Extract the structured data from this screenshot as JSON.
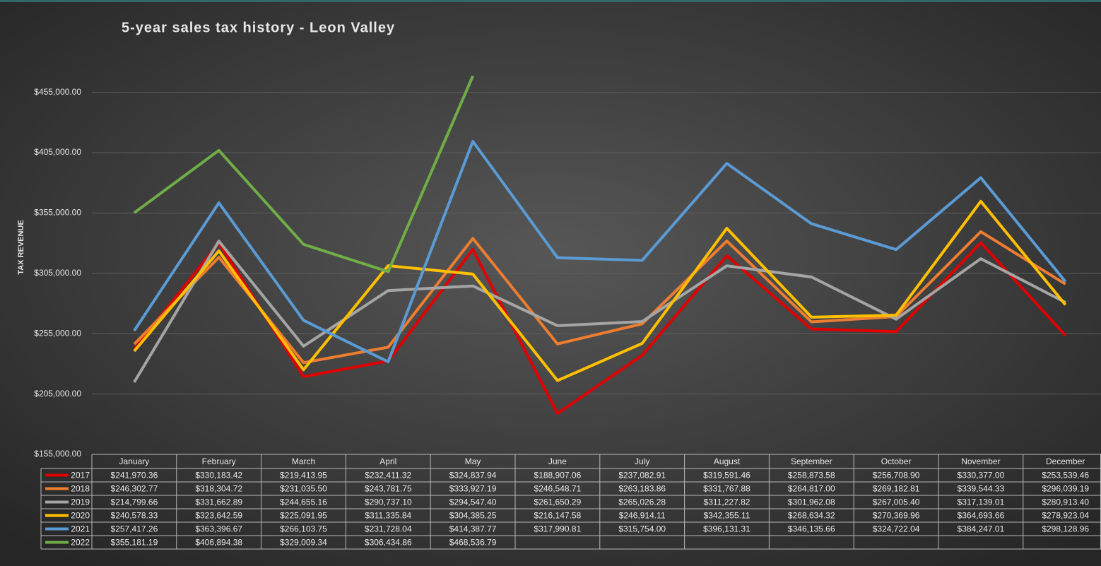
{
  "chart_data": {
    "type": "line",
    "title": "5-year sales tax history - Leon Valley",
    "y_label": "TAX REVENUE",
    "categories": [
      "January",
      "February",
      "March",
      "April",
      "May",
      "June",
      "July",
      "August",
      "September",
      "October",
      "November",
      "December"
    ],
    "ylim": [
      155000,
      480000
    ],
    "yticks": [
      {
        "value": 155000,
        "label": "$155,000.00"
      },
      {
        "value": 205000,
        "label": "$205,000.00"
      },
      {
        "value": 255000,
        "label": "$255,000.00"
      },
      {
        "value": 305000,
        "label": "$305,000.00"
      },
      {
        "value": 355000,
        "label": "$355,000.00"
      },
      {
        "value": 405000,
        "label": "$405,000.00"
      },
      {
        "value": 455000,
        "label": "$455,000.00"
      }
    ],
    "grid": true,
    "series": [
      {
        "name": "2017",
        "color": "#e00000",
        "values": [
          241970.36,
          330183.42,
          219413.95,
          232411.32,
          324837.94,
          188907.06,
          237082.91,
          319591.46,
          258873.58,
          256708.9,
          330377.0,
          253539.46
        ],
        "value_labels": [
          "$241,970.36",
          "$330,183.42",
          "$219,413.95",
          "$232,411.32",
          "$324,837.94",
          "$188,907.06",
          "$237,082.91",
          "$319,591.46",
          "$258,873.58",
          "$256,708.90",
          "$330,377.00",
          "$253,539.46"
        ]
      },
      {
        "name": "2018",
        "color": "#ed7d31",
        "values": [
          246302.77,
          318304.72,
          231035.5,
          243781.75,
          333927.19,
          246548.71,
          263183.86,
          331767.88,
          264817.0,
          269182.81,
          339544.33,
          296039.19
        ],
        "value_labels": [
          "$246,302.77",
          "$318,304.72",
          "$231,035.50",
          "$243,781.75",
          "$333,927.19",
          "$246,548.71",
          "$263,183.86",
          "$331,767.88",
          "$264,817.00",
          "$269,182.81",
          "$339,544.33",
          "$296,039.19"
        ]
      },
      {
        "name": "2019",
        "color": "#a5a5a5",
        "values": [
          214799.66,
          331662.89,
          244655.16,
          290737.1,
          294547.4,
          261650.29,
          265026.28,
          311227.82,
          301962.08,
          267005.4,
          317139.01,
          280913.4
        ],
        "value_labels": [
          "$214,799.66",
          "$331,662.89",
          "$244,655.16",
          "$290,737.10",
          "$294,547.40",
          "$261,650.29",
          "$265,026.28",
          "$311,227.82",
          "$301,962.08",
          "$267,005.40",
          "$317,139.01",
          "$280,913.40"
        ]
      },
      {
        "name": "2020",
        "color": "#ffc000",
        "values": [
          240578.33,
          323642.59,
          225091.95,
          311335.84,
          304385.25,
          216147.58,
          246914.11,
          342355.11,
          268634.32,
          270369.96,
          364693.66,
          278923.04
        ],
        "value_labels": [
          "$240,578.33",
          "$323,642.59",
          "$225,091.95",
          "$311,335.84",
          "$304,385.25",
          "$216,147.58",
          "$246,914.11",
          "$342,355.11",
          "$268,634.32",
          "$270,369.96",
          "$364,693.66",
          "$278,923.04"
        ]
      },
      {
        "name": "2021",
        "color": "#5b9bd5",
        "values": [
          257417.26,
          363396.67,
          266103.75,
          231728.04,
          414387.77,
          317990.81,
          315754.0,
          396131.31,
          346135.66,
          324722.04,
          384247.01,
          298128.96
        ],
        "value_labels": [
          "$257,417.26",
          "$363,396.67",
          "$266,103.75",
          "$231,728.04",
          "$414,387.77",
          "$317,990.81",
          "$315,754.00",
          "$396,131.31",
          "$346,135.66",
          "$324,722.04",
          "$384,247.01",
          "$298,128.96"
        ]
      },
      {
        "name": "2022",
        "color": "#70ad47",
        "values": [
          355181.19,
          406894.38,
          329009.34,
          306434.86,
          468536.79,
          null,
          null,
          null,
          null,
          null,
          null,
          null
        ],
        "value_labels": [
          "$355,181.19",
          "$406,894.38",
          "$329,009.34",
          "$306,434.86",
          "$468,536.79",
          null,
          null,
          null,
          null,
          null,
          null,
          null
        ]
      }
    ]
  }
}
